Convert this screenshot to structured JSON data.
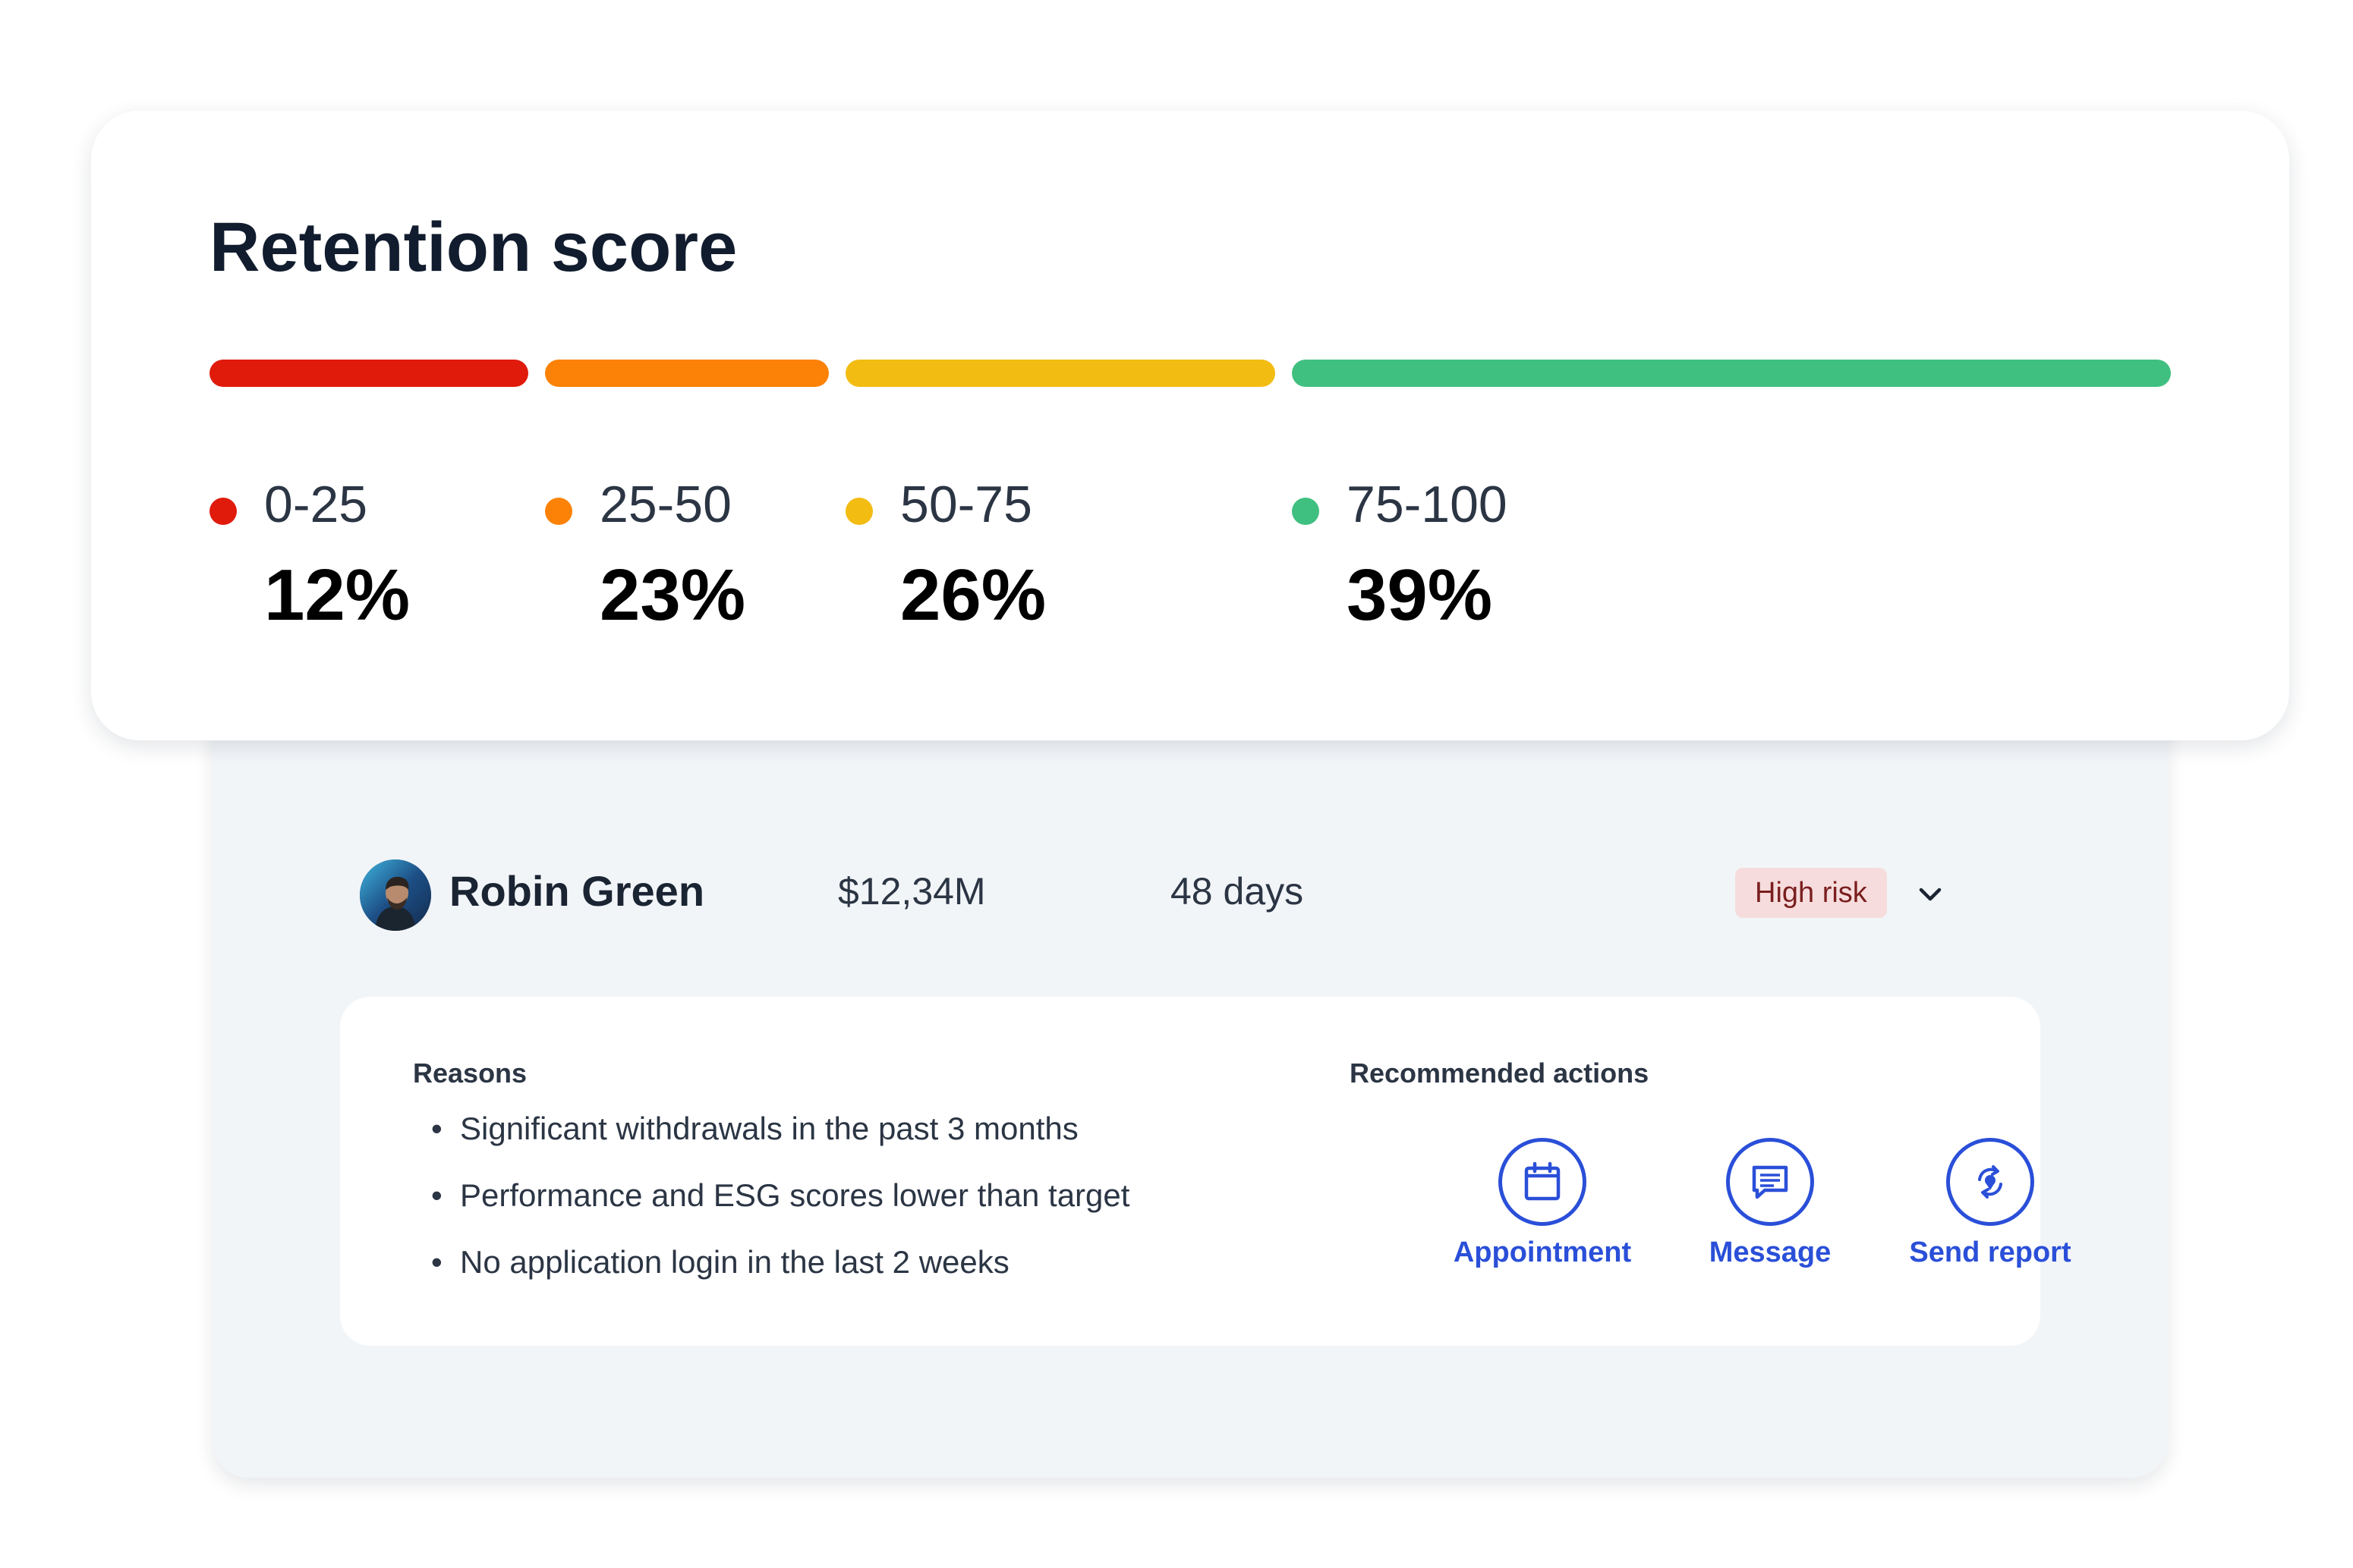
{
  "retention": {
    "title": "Retention score",
    "segments": [
      {
        "range": "0-25",
        "percent": "12%",
        "color": "#e01b0c"
      },
      {
        "range": "25-50",
        "percent": "23%",
        "color": "#fb8206"
      },
      {
        "range": "50-75",
        "percent": "26%",
        "color": "#f2bc12"
      },
      {
        "range": "75-100",
        "percent": "39%",
        "color": "#40c080"
      }
    ]
  },
  "client": {
    "name": "Robin Green",
    "amount": "$12,34M",
    "days": "48 days",
    "risk": "High risk",
    "avatar_icon": "person-avatar",
    "expand_icon": "chevron-down-icon"
  },
  "details": {
    "reasons_title": "Reasons",
    "reasons": [
      "Significant withdrawals in the past 3 months",
      "Performance and ESG scores lower than target",
      "No application login in the last 2 weeks"
    ],
    "actions_title": "Recommended actions",
    "actions": [
      {
        "label": "Appointment",
        "icon": "calendar-icon"
      },
      {
        "label": "Message",
        "icon": "message-icon"
      },
      {
        "label": "Send report",
        "icon": "send-report-icon"
      }
    ]
  },
  "colors": {
    "accent": "#2a4fd8",
    "risk_badge_bg": "#f6dcdc",
    "risk_badge_text": "#7a1e1e",
    "panel_bg": "#f2f5f8"
  }
}
